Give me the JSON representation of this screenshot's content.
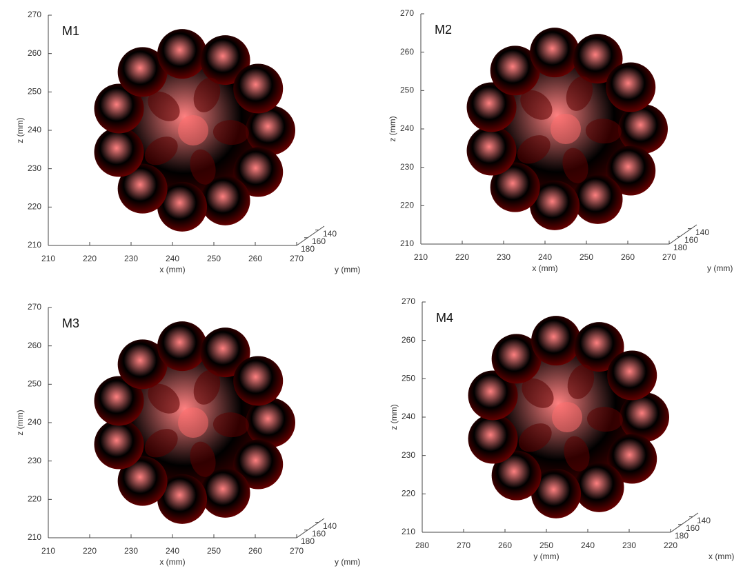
{
  "chart_data": [
    {
      "type": "surface3d",
      "title": "M1",
      "xlabel": "x (mm)",
      "ylabel": "y (mm)",
      "zlabel": "z (mm)",
      "color": "#d42020",
      "xlim": [
        210,
        270
      ],
      "xticks": [
        210,
        220,
        230,
        240,
        250,
        260,
        270
      ],
      "ylim": [
        180,
        130
      ],
      "yticks": [
        140,
        160,
        180
      ],
      "zlim": [
        210,
        270
      ],
      "zticks": [
        210,
        220,
        230,
        240,
        250,
        260,
        270
      ]
    },
    {
      "type": "surface3d",
      "title": "M2",
      "xlabel": "x (mm)",
      "ylabel": "y (mm)",
      "zlabel": "z (mm)",
      "color": "#c8101a",
      "xlim": [
        210,
        270
      ],
      "xticks": [
        210,
        220,
        230,
        240,
        250,
        260,
        270
      ],
      "ylim": [
        180,
        130
      ],
      "yticks": [
        140,
        160,
        180
      ],
      "zlim": [
        210,
        270
      ],
      "zticks": [
        210,
        220,
        230,
        240,
        250,
        260,
        270
      ]
    },
    {
      "type": "surface3d",
      "title": "M3",
      "xlabel": "x (mm)",
      "ylabel": "y (mm)",
      "zlabel": "z (mm)",
      "color": "#cc1418",
      "xlim": [
        210,
        270
      ],
      "xticks": [
        210,
        220,
        230,
        240,
        250,
        260,
        270
      ],
      "ylim": [
        180,
        130
      ],
      "yticks": [
        140,
        160,
        180
      ],
      "zlim": [
        210,
        270
      ],
      "zticks": [
        210,
        220,
        230,
        240,
        250,
        260,
        270
      ]
    },
    {
      "type": "surface3d",
      "title": "M4",
      "xlabel": "y (mm)",
      "ylabel": "x (mm)",
      "zlabel": "z (mm)",
      "color": "#e03030",
      "xlim": [
        280,
        220
      ],
      "xticks": [
        280,
        270,
        260,
        250,
        240,
        230,
        220
      ],
      "ylim": [
        180,
        130
      ],
      "yticks": [
        140,
        160,
        180
      ],
      "zlim": [
        210,
        270
      ],
      "zticks": [
        210,
        220,
        230,
        240,
        250,
        260,
        270
      ]
    }
  ]
}
